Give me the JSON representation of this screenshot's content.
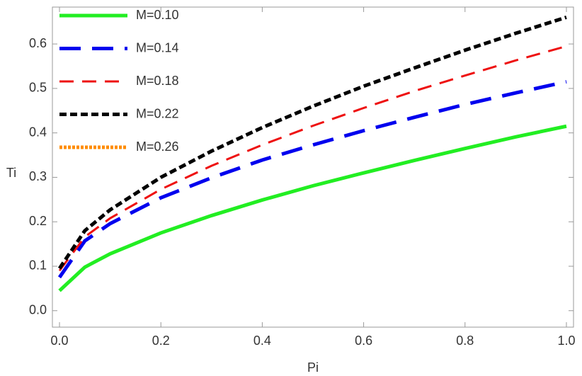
{
  "chart_data": {
    "type": "line",
    "x_label": "Pi",
    "y_label": "Ti",
    "x": [
      0,
      0.05,
      0.1,
      0.2,
      0.3,
      0.4,
      0.5,
      0.6,
      0.7,
      0.8,
      0.9,
      1.0
    ],
    "series": [
      {
        "name": "M=0.10",
        "color": "#22ee22",
        "dash": "solid",
        "values": [
          0.045,
          0.098,
          0.128,
          0.175,
          0.214,
          0.249,
          0.281,
          0.31,
          0.338,
          0.365,
          0.391,
          0.415
        ]
      },
      {
        "name": "M=0.14",
        "color": "#0000ee",
        "dash": "long-dash",
        "values": [
          0.075,
          0.157,
          0.196,
          0.254,
          0.299,
          0.339,
          0.373,
          0.405,
          0.435,
          0.464,
          0.49,
          0.515
        ]
      },
      {
        "name": "M=0.18",
        "color": "#ee1111",
        "dash": "dash",
        "values": [
          0.09,
          0.166,
          0.208,
          0.273,
          0.326,
          0.373,
          0.416,
          0.456,
          0.494,
          0.529,
          0.563,
          0.595
        ]
      },
      {
        "name": "M=0.22",
        "color": "#000000",
        "dash": "short-dash",
        "values": [
          0.095,
          0.18,
          0.227,
          0.3,
          0.359,
          0.412,
          0.46,
          0.505,
          0.546,
          0.586,
          0.624,
          0.66
        ]
      },
      {
        "name": "M=0.26",
        "color": "#ff8c00",
        "dash": "dot",
        "values": [
          null,
          null,
          null,
          null,
          null,
          null,
          null,
          null,
          null,
          null,
          null,
          null
        ]
      }
    ],
    "xlim": [
      -0.014,
      1.014
    ],
    "ylim": [
      -0.037,
      0.683
    ],
    "xticks": [
      {
        "value": 0,
        "label": "0.0"
      },
      0.2,
      0.4,
      0.6,
      0.8,
      {
        "value": 1,
        "label": "1.0"
      }
    ],
    "yticks": [
      {
        "value": 0,
        "label": "0.0"
      },
      0.1,
      0.2,
      0.3,
      0.4,
      0.5,
      0.6
    ],
    "legend": "top-left"
  }
}
